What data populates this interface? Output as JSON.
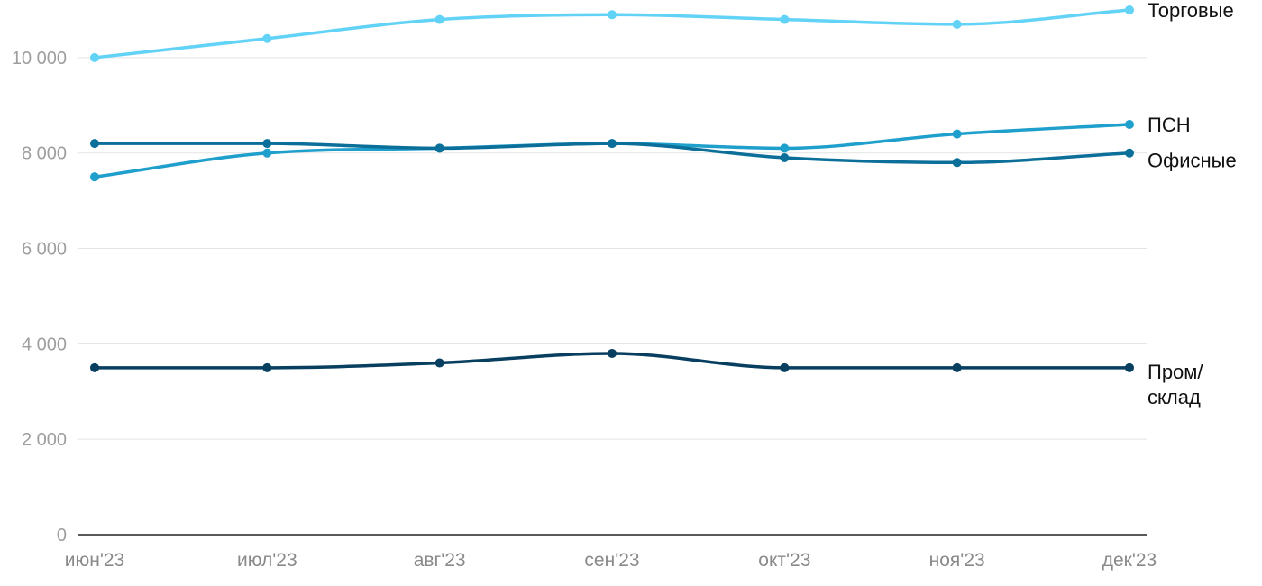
{
  "chart_data": {
    "type": "line",
    "categories": [
      "июн'23",
      "июл'23",
      "авг'23",
      "сен'23",
      "окт'23",
      "ноя'23",
      "дек'23"
    ],
    "ylim": [
      0,
      11000
    ],
    "yticks": [
      0,
      2000,
      4000,
      6000,
      8000,
      10000
    ],
    "ytick_labels": [
      "0",
      "2 000",
      "4 000",
      "6 000",
      "8 000",
      "10 000"
    ],
    "grid": true,
    "legend": "inline-right",
    "series": [
      {
        "name": "Торговые",
        "color": "#62d3f6",
        "values": [
          10000,
          10400,
          10800,
          10900,
          10800,
          10700,
          11000
        ]
      },
      {
        "name": "ПСН",
        "color": "#1f9fcb",
        "values": [
          7500,
          8000,
          8100,
          8200,
          8100,
          8400,
          8600
        ]
      },
      {
        "name": "Офисные",
        "color": "#0b6f99",
        "values": [
          8200,
          8200,
          8100,
          8200,
          7900,
          7800,
          8000
        ]
      },
      {
        "name": "Пром/\nсклад",
        "label_lines": [
          "Пром/",
          "склад"
        ],
        "color": "#083f60",
        "values": [
          3500,
          3500,
          3600,
          3800,
          3500,
          3500,
          3500
        ]
      }
    ]
  }
}
